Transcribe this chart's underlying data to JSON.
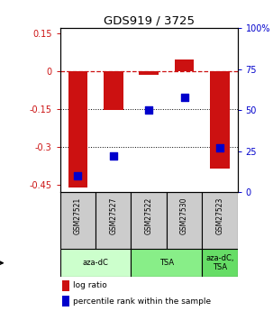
{
  "title": "GDS919 / 3725",
  "samples": [
    "GSM27521",
    "GSM27527",
    "GSM27522",
    "GSM27530",
    "GSM27523"
  ],
  "log_ratios": [
    -0.46,
    -0.155,
    -0.015,
    0.045,
    -0.385
  ],
  "percentile_ranks": [
    10,
    22,
    50,
    58,
    27
  ],
  "ylim_left": [
    -0.48,
    0.17
  ],
  "ylim_right": [
    0,
    100
  ],
  "left_ticks": [
    0.15,
    0,
    -0.15,
    -0.3,
    -0.45
  ],
  "right_ticks": [
    100,
    75,
    50,
    25,
    0
  ],
  "agent_groups": [
    {
      "label": "aza-dC",
      "span": [
        0,
        2
      ],
      "color": "#ccffcc"
    },
    {
      "label": "TSA",
      "span": [
        2,
        4
      ],
      "color": "#88ee88"
    },
    {
      "label": "aza-dC,\nTSA",
      "span": [
        4,
        5
      ],
      "color": "#66dd66"
    }
  ],
  "bar_color": "#cc1111",
  "dot_color": "#0000cc",
  "bar_width": 0.55,
  "dot_size": 28,
  "background_color": "#ffffff",
  "sample_box_color": "#cccccc",
  "legend_bar_label": "log ratio",
  "legend_dot_label": "percentile rank within the sample"
}
